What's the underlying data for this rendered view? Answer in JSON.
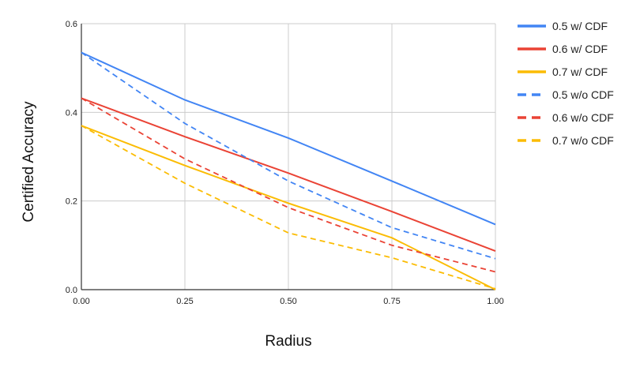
{
  "chart_data": {
    "type": "line",
    "xlabel": "Radius",
    "ylabel": "Certified Accuracy",
    "x": [
      0.0,
      0.25,
      0.5,
      0.75,
      1.0
    ],
    "xlim": [
      0,
      1
    ],
    "ylim": [
      0,
      0.6
    ],
    "x_ticks": [
      0.0,
      0.25,
      0.5,
      0.75,
      1.0
    ],
    "x_tick_labels": [
      "0.00",
      "0.25",
      "0.50",
      "0.75",
      "1.00"
    ],
    "y_ticks": [
      0,
      0.2,
      0.4,
      0.6
    ],
    "y_tick_labels": [
      "0.0",
      "0.2",
      "0.4",
      "0.6"
    ],
    "grid": true,
    "legend_position": "right",
    "series": [
      {
        "name": "0.5 w/ CDF",
        "color": "#4285f4",
        "dashed": false,
        "values": [
          0.535,
          0.428,
          0.342,
          0.245,
          0.147
        ]
      },
      {
        "name": "0.6 w/ CDF",
        "color": "#ea4335",
        "dashed": false,
        "values": [
          0.432,
          0.345,
          0.263,
          0.176,
          0.087
        ]
      },
      {
        "name": "0.7 w/ CDF",
        "color": "#fbbc04",
        "dashed": false,
        "values": [
          0.37,
          0.28,
          0.195,
          0.117,
          0.0
        ]
      },
      {
        "name": "0.5 w/o CDF",
        "color": "#4285f4",
        "dashed": true,
        "values": [
          0.535,
          0.375,
          0.245,
          0.14,
          0.07
        ]
      },
      {
        "name": "0.6 w/o CDF",
        "color": "#ea4335",
        "dashed": true,
        "values": [
          0.432,
          0.295,
          0.185,
          0.1,
          0.04
        ]
      },
      {
        "name": "0.7 w/o CDF",
        "color": "#fbbc04",
        "dashed": true,
        "values": [
          0.37,
          0.24,
          0.128,
          0.072,
          0.002
        ]
      }
    ]
  }
}
